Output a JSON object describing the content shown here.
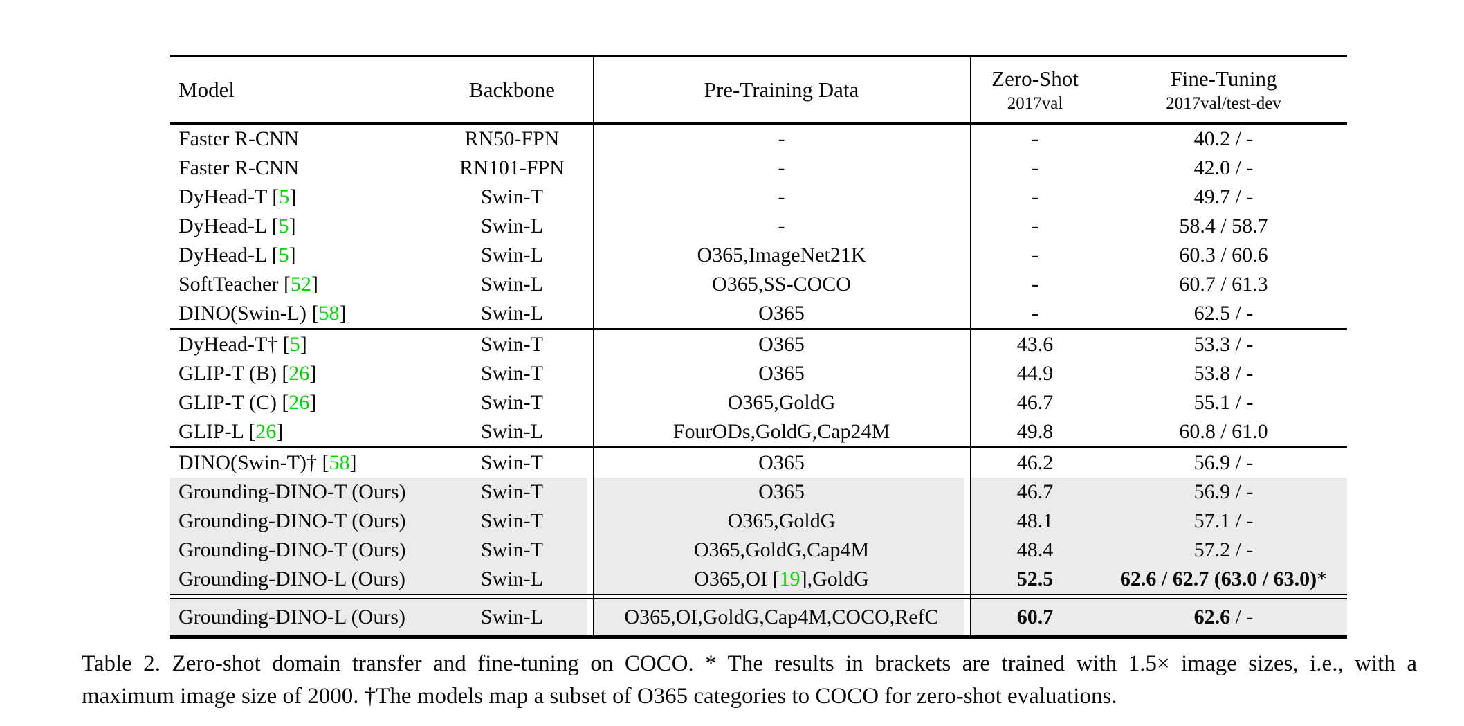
{
  "colors": {
    "text": "#0a0a0a",
    "rule": "#000000",
    "row_highlight": "#ebebeb",
    "citation_green": "#00d800"
  },
  "table": {
    "header": {
      "model": "Model",
      "backbone": "Backbone",
      "pretraining": "Pre-Training Data",
      "zero_shot": {
        "label": "Zero-Shot",
        "sub": "2017val"
      },
      "fine_tuning": {
        "label": "Fine-Tuning",
        "sub": "2017val/test-dev"
      }
    },
    "groups": [
      {
        "separator_above": "none",
        "rows": [
          {
            "model": "Faster R-CNN",
            "backbone": "RN50-FPN",
            "pretrain": "-",
            "zero_shot": "-",
            "fine_tuning": "40.2 / -"
          },
          {
            "model": "Faster R-CNN",
            "backbone": "RN101-FPN",
            "pretrain": "-",
            "zero_shot": "-",
            "fine_tuning": "42.0 / -"
          },
          {
            "model": [
              {
                "t": "DyHead-T ["
              },
              {
                "t": "5",
                "green": true
              },
              {
                "t": "]"
              }
            ],
            "backbone": "Swin-T",
            "pretrain": "-",
            "zero_shot": "-",
            "fine_tuning": "49.7 / -"
          },
          {
            "model": [
              {
                "t": "DyHead-L ["
              },
              {
                "t": "5",
                "green": true
              },
              {
                "t": "]"
              }
            ],
            "backbone": "Swin-L",
            "pretrain": "-",
            "zero_shot": "-",
            "fine_tuning": "58.4 / 58.7"
          },
          {
            "model": [
              {
                "t": "DyHead-L ["
              },
              {
                "t": "5",
                "green": true
              },
              {
                "t": "]"
              }
            ],
            "backbone": "Swin-L",
            "pretrain": "O365,ImageNet21K",
            "zero_shot": "-",
            "fine_tuning": "60.3 / 60.6"
          },
          {
            "model": [
              {
                "t": "SoftTeacher ["
              },
              {
                "t": "52",
                "green": true
              },
              {
                "t": "]"
              }
            ],
            "backbone": "Swin-L",
            "pretrain": "O365,SS-COCO",
            "zero_shot": "-",
            "fine_tuning": "60.7 / 61.3"
          },
          {
            "model": [
              {
                "t": "DINO(Swin-L) ["
              },
              {
                "t": "58",
                "green": true
              },
              {
                "t": "]"
              }
            ],
            "backbone": "Swin-L",
            "pretrain": "O365",
            "zero_shot": "-",
            "fine_tuning": "62.5 / -"
          }
        ]
      },
      {
        "separator_above": "single",
        "rows": [
          {
            "model": [
              {
                "t": "DyHead-T† ["
              },
              {
                "t": "5",
                "green": true
              },
              {
                "t": "]"
              }
            ],
            "backbone": "Swin-T",
            "pretrain": "O365",
            "zero_shot": "43.6",
            "fine_tuning": "53.3 / -"
          },
          {
            "model": [
              {
                "t": "GLIP-T (B) ["
              },
              {
                "t": "26",
                "green": true
              },
              {
                "t": "]"
              }
            ],
            "backbone": "Swin-T",
            "pretrain": "O365",
            "zero_shot": "44.9",
            "fine_tuning": "53.8 / -"
          },
          {
            "model": [
              {
                "t": "GLIP-T (C) ["
              },
              {
                "t": "26",
                "green": true
              },
              {
                "t": "]"
              }
            ],
            "backbone": "Swin-T",
            "pretrain": "O365,GoldG",
            "zero_shot": "46.7",
            "fine_tuning": "55.1 / -"
          },
          {
            "model": [
              {
                "t": "GLIP-L ["
              },
              {
                "t": "26",
                "green": true
              },
              {
                "t": "]"
              }
            ],
            "backbone": "Swin-L",
            "pretrain": "FourODs,GoldG,Cap24M",
            "zero_shot": "49.8",
            "fine_tuning": "60.8 / 61.0"
          }
        ]
      },
      {
        "separator_above": "single",
        "rows": [
          {
            "model": [
              {
                "t": "DINO(Swin-T)† ["
              },
              {
                "t": "58",
                "green": true
              },
              {
                "t": "]"
              }
            ],
            "backbone": "Swin-T",
            "pretrain": "O365",
            "zero_shot": "46.2",
            "fine_tuning": "56.9 / -"
          },
          {
            "highlight": true,
            "model": "Grounding-DINO-T (Ours)",
            "backbone": "Swin-T",
            "pretrain": "O365",
            "zero_shot": "46.7",
            "fine_tuning": "56.9 / -"
          },
          {
            "highlight": true,
            "model": "Grounding-DINO-T (Ours)",
            "backbone": "Swin-T",
            "pretrain": "O365,GoldG",
            "zero_shot": "48.1",
            "fine_tuning": "57.1 / -"
          },
          {
            "highlight": true,
            "model": "Grounding-DINO-T (Ours)",
            "backbone": "Swin-T",
            "pretrain": "O365,GoldG,Cap4M",
            "zero_shot": "48.4",
            "fine_tuning": "57.2 / -"
          },
          {
            "highlight": true,
            "model": "Grounding-DINO-L (Ours)",
            "backbone": "Swin-L",
            "pretrain": [
              {
                "t": "O365,OI ["
              },
              {
                "t": "19",
                "green": true
              },
              {
                "t": "],GoldG"
              }
            ],
            "zero_shot": [
              {
                "t": "52.5",
                "bold": true
              }
            ],
            "fine_tuning": [
              {
                "t": "62.6 / 62.7 (63.0 / 63.0)",
                "bold": true
              },
              {
                "t": "*"
              }
            ]
          }
        ]
      },
      {
        "separator_above": "double",
        "rows": [
          {
            "highlight": true,
            "tall": true,
            "model": "Grounding-DINO-L (Ours)",
            "backbone": "Swin-L",
            "pretrain": "O365,OI,GoldG,Cap4M,COCO,RefC",
            "zero_shot": [
              {
                "t": "60.7",
                "bold": true
              }
            ],
            "fine_tuning": [
              {
                "t": "62.6",
                "bold": true
              },
              {
                "t": " / -"
              }
            ]
          }
        ]
      }
    ]
  },
  "caption": {
    "lines": [
      "Table 2.  Zero-shot domain transfer and fine-tuning on COCO. * The results in brackets are trained with 1.5× image sizes, i.e., with a",
      "maximum image size of 2000. †The models map a subset of O365 categories to COCO for zero-shot evaluations."
    ]
  }
}
